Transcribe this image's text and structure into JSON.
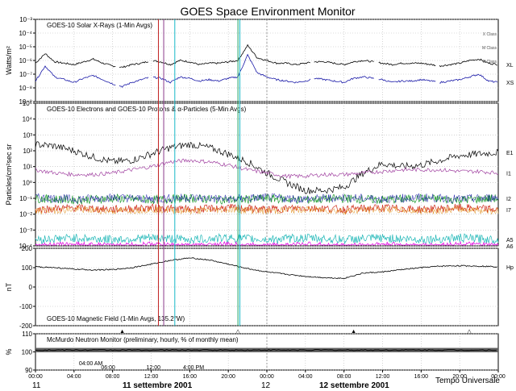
{
  "title": "GOES Space Environment Monitor",
  "colors": {
    "black": "#000000",
    "blue": "#1a1aa8",
    "purple": "#a040a0",
    "green": "#1d9a2e",
    "red": "#d03020",
    "orange": "#e08a10",
    "cyan": "#22b8b8",
    "magenta": "#e000e0",
    "grid": "#b8b8b8",
    "marker_red": "#c02020",
    "marker_purple": "#8a3a8a",
    "marker_cyan": "#18b8c8",
    "marker_green": "#18a060"
  },
  "chart_data": [
    {
      "type": "line",
      "panel": "xray",
      "label": "GOES-10 Solar X-Rays (1-Min Avgs)",
      "ylabel": "Watts/m²",
      "yscale": "log",
      "ylim_exp": [
        -9,
        -3
      ],
      "tick_labels": [
        "10⁻⁹",
        "10⁻⁸",
        "10⁻⁷",
        "10⁻⁶",
        "10⁻⁵",
        "10⁻⁴",
        "10⁻³"
      ],
      "flare_classes": [
        "X Class",
        "M Class",
        "C Class"
      ],
      "series": [
        {
          "name": "XL",
          "color": "black",
          "x": [
            0,
            1,
            2,
            3,
            4,
            5,
            6,
            7,
            8,
            9,
            10,
            11,
            12,
            13,
            14,
            15,
            16,
            17,
            18,
            19,
            20,
            21,
            22,
            23,
            24,
            25,
            26,
            27,
            28,
            29,
            30,
            31,
            32,
            33,
            34,
            35,
            36,
            37,
            38,
            39,
            40,
            41,
            42,
            43,
            44,
            45,
            46,
            47,
            48
          ],
          "y": [
            -6.2,
            -5.5,
            -6.1,
            -6.2,
            -6.3,
            -6.1,
            -5.9,
            -6.2,
            -6.4,
            -6.5,
            -6.3,
            -6.2,
            -6.0,
            -6.1,
            -6.3,
            -6.0,
            -6.1,
            -6.3,
            -6.2,
            -6.2,
            -6.1,
            -6.0,
            -4.9,
            -5.8,
            -6.0,
            -6.2,
            -6.2,
            -6.3,
            -6.2,
            -6.1,
            -6.1,
            -6.2,
            -6.3,
            -6.1,
            -6.0,
            -6.1,
            -6.2,
            -6.3,
            -6.2,
            -6.2,
            -6.2,
            -6.3,
            -6.4,
            -6.3,
            -6.2,
            -6.0,
            -5.9,
            -6.2,
            -6.3
          ]
        },
        {
          "name": "XS",
          "color": "blue",
          "x": [
            0,
            1,
            2,
            3,
            4,
            5,
            6,
            7,
            8,
            9,
            10,
            11,
            12,
            13,
            14,
            15,
            16,
            17,
            18,
            19,
            20,
            21,
            22,
            23,
            24,
            25,
            26,
            27,
            28,
            29,
            30,
            31,
            32,
            33,
            34,
            35,
            36,
            37,
            38,
            39,
            40,
            41,
            42,
            43,
            44,
            45,
            46,
            47,
            48
          ],
          "y": [
            -7.5,
            -6.4,
            -7.2,
            -7.4,
            -7.6,
            -7.3,
            -7.1,
            -7.4,
            -7.7,
            -7.9,
            -7.6,
            -7.4,
            -7.2,
            -7.3,
            -7.6,
            -7.2,
            -7.3,
            -7.5,
            -7.4,
            -7.5,
            -7.3,
            -7.2,
            -5.6,
            -6.9,
            -7.2,
            -7.4,
            -7.5,
            -7.6,
            -7.5,
            -7.3,
            -7.4,
            -7.5,
            -7.6,
            -7.3,
            -7.2,
            -7.3,
            -7.4,
            -7.6,
            -7.5,
            -7.5,
            -7.4,
            -7.5,
            -7.6,
            -7.5,
            -7.4,
            -7.2,
            -7.0,
            -7.5,
            -7.6
          ]
        }
      ]
    },
    {
      "type": "line",
      "panel": "particles",
      "label": "GOES-10 Electrons and GOES-10 Protons & α-Particles (5-Min Avgs)",
      "ylabel": "Particles/cm²sec sr",
      "yscale": "log",
      "ylim_exp": [
        -4,
        5
      ],
      "tick_labels": [
        "10⁻⁴",
        "10⁻³",
        "10⁻²",
        "10⁻¹",
        "10⁰",
        "10¹",
        "10²",
        "10³",
        "10⁴",
        "10⁵"
      ],
      "series": [
        {
          "name": "E1",
          "color": "black",
          "x": [
            0,
            2,
            4,
            6,
            8,
            10,
            12,
            14,
            16,
            18,
            20,
            22,
            24,
            26,
            28,
            30,
            32,
            34,
            36,
            38,
            40,
            42,
            44,
            46,
            48
          ],
          "y": [
            2.4,
            2.3,
            2.0,
            1.6,
            1.3,
            1.4,
            1.8,
            2.2,
            2.4,
            2.2,
            1.8,
            1.3,
            0.6,
            0.0,
            -0.5,
            -0.5,
            -0.3,
            0.6,
            1.2,
            1.0,
            1.1,
            1.4,
            1.7,
            1.8,
            1.9
          ]
        },
        {
          "name": "I1",
          "color": "purple",
          "x": [
            0,
            2,
            4,
            6,
            8,
            10,
            12,
            14,
            16,
            18,
            20,
            22,
            24,
            26,
            28,
            30,
            32,
            34,
            36,
            38,
            40,
            42,
            44,
            46,
            48
          ],
          "y": [
            0.8,
            0.6,
            0.5,
            0.5,
            0.6,
            0.8,
            1.0,
            1.3,
            1.4,
            1.3,
            1.1,
            0.8,
            0.6,
            0.4,
            0.4,
            0.5,
            0.5,
            0.6,
            0.7,
            0.8,
            0.8,
            0.8,
            0.7,
            0.7,
            0.6
          ]
        },
        {
          "name": "I2",
          "color": "green",
          "x": [
            0,
            4,
            8,
            12,
            16,
            20,
            24,
            28,
            32,
            36,
            40,
            44,
            48
          ],
          "y": [
            -1.0,
            -1.1,
            -1.0,
            -1.1,
            -1.0,
            -1.1,
            -1.0,
            -1.1,
            -1.0,
            -1.1,
            -1.0,
            -1.1,
            -1.0
          ]
        },
        {
          "name": "I7",
          "color": "red",
          "x": [
            0,
            4,
            8,
            12,
            16,
            20,
            24,
            28,
            32,
            36,
            40,
            44,
            48
          ],
          "y": [
            -1.7,
            -1.6,
            -1.7,
            -1.6,
            -1.7,
            -1.6,
            -1.7,
            -1.6,
            -1.7,
            -1.6,
            -1.7,
            -1.6,
            -1.7
          ]
        },
        {
          "name": "A5",
          "color": "cyan",
          "x": [
            0,
            4,
            8,
            12,
            16,
            20,
            24,
            28,
            32,
            36,
            40,
            44,
            48
          ],
          "y": [
            -3.6,
            -3.5,
            -3.6,
            -3.5,
            -3.6,
            -3.5,
            -3.6,
            -3.5,
            -3.6,
            -3.5,
            -3.6,
            -3.5,
            -3.6
          ]
        },
        {
          "name": "A6",
          "color": "magenta",
          "x": [
            0,
            4,
            8,
            12,
            16,
            20,
            24,
            28,
            32,
            36,
            40,
            44,
            48
          ],
          "y": [
            -4.0,
            -3.9,
            -4.0,
            -3.9,
            -4.0,
            -3.9,
            -4.0,
            -3.9,
            -4.0,
            -3.9,
            -4.0,
            -3.9,
            -4.0
          ]
        }
      ]
    },
    {
      "type": "line",
      "panel": "magnetic",
      "label": "GOES-10 Magnetic Field (1-Min Avgs, 135.2°W)",
      "ylabel": "nT",
      "ylim": [
        -200,
        200
      ],
      "tick_labels": [
        "-200",
        "-100",
        "0",
        "100",
        "200"
      ],
      "series": [
        {
          "name": "Hp",
          "color": "black",
          "x": [
            0,
            2,
            4,
            6,
            8,
            10,
            12,
            14,
            16,
            18,
            20,
            22,
            24,
            26,
            28,
            30,
            32,
            34,
            36,
            38,
            40,
            42,
            44,
            46,
            48
          ],
          "y": [
            105,
            100,
            92,
            88,
            90,
            100,
            118,
            138,
            150,
            140,
            118,
            95,
            78,
            66,
            55,
            48,
            45,
            72,
            78,
            90,
            100,
            108,
            110,
            108,
            105
          ]
        }
      ]
    },
    {
      "type": "line",
      "panel": "neutron",
      "label": "McMurdo Neutron Monitor (preliminary, hourly, % of monthly mean)",
      "ylabel": "%",
      "ylim": [
        90,
        110
      ],
      "tick_labels": [
        "90",
        "100",
        "110"
      ],
      "series": [
        {
          "name": "Neutron",
          "color": "black",
          "x": [
            0,
            48
          ],
          "y": [
            101,
            101
          ]
        }
      ]
    }
  ],
  "x_axis": {
    "range_hours": [
      0,
      48
    ],
    "tick_labels": [
      "00:00",
      "04:00",
      "08:00",
      "12:00",
      "16:00",
      "20:00",
      "00:00",
      "04:00",
      "08:00",
      "12:00",
      "16:00",
      "20:00",
      "00:00"
    ],
    "day_labels": [
      "11",
      "11 settembre 2001",
      "12",
      "12 settembre 2001"
    ],
    "xlabel": "Tempo Universale"
  },
  "event_lines": [
    {
      "hour": 12.75,
      "color": "marker_red"
    },
    {
      "hour": 13.3,
      "color": "marker_purple"
    },
    {
      "hour": 14.45,
      "color": "marker_cyan"
    },
    {
      "hour": 21.0,
      "color": "marker_green"
    },
    {
      "hour": 21.2,
      "color": "marker_cyan"
    }
  ],
  "event_labels": [
    "04:00 AM",
    "06:00",
    "12:00",
    "4:00 PM"
  ],
  "magnetic_markers": [
    "▲",
    "△",
    "▲",
    "△"
  ]
}
